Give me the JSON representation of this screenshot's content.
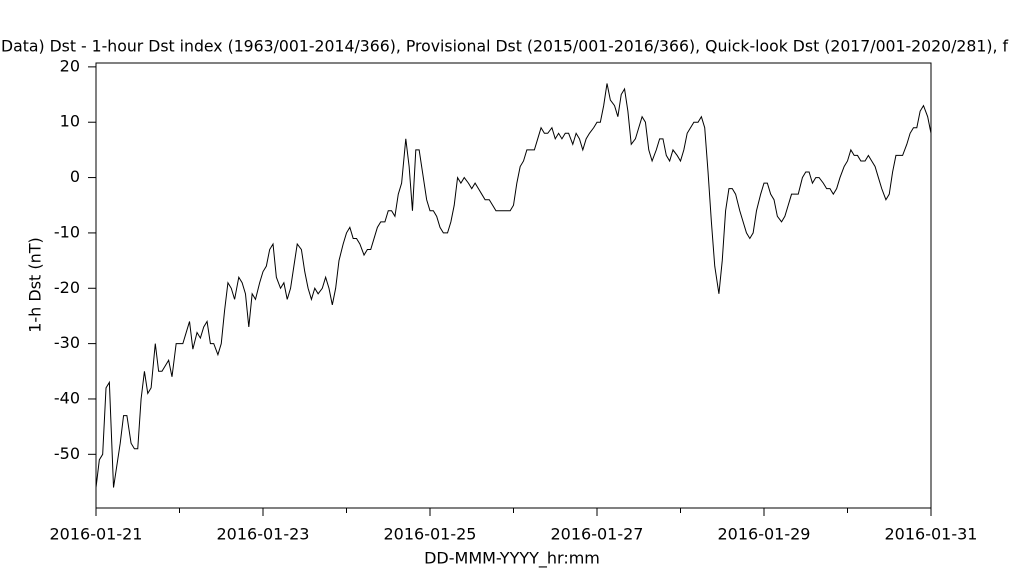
{
  "chart_data": {
    "type": "line",
    "title": "Data)  Dst - 1-hour Dst index (1963/001-2014/366), Provisional Dst (2015/001-2016/366), Quick-look Dst (2017/001-2020/281), f",
    "xlabel": "DD-MMM-YYYY_hr:mm",
    "ylabel": "1-h Dst (nT)",
    "xlim": [
      0,
      10
    ],
    "ylim": [
      -59.7,
      20.7
    ],
    "xticks": [
      {
        "value": 0,
        "label": "2016-01-21"
      },
      {
        "value": 2,
        "label": "2016-01-23"
      },
      {
        "value": 4,
        "label": "2016-01-25"
      },
      {
        "value": 6,
        "label": "2016-01-27"
      },
      {
        "value": 8,
        "label": "2016-01-29"
      },
      {
        "value": 10,
        "label": "2016-01-31"
      }
    ],
    "xminor_ticks": [
      1,
      3,
      5,
      7,
      9
    ],
    "yticks": [
      -50,
      -40,
      -30,
      -20,
      -10,
      0,
      10,
      20
    ],
    "series": [
      {
        "color": "#000000",
        "x": [
          0,
          0.04,
          0.08,
          0.12,
          0.16,
          0.21,
          0.29,
          0.33,
          0.37,
          0.42,
          0.46,
          0.5,
          0.54,
          0.58,
          0.62,
          0.66,
          0.71,
          0.75,
          0.79,
          0.83,
          0.87,
          0.91,
          0.96,
          1,
          1.04,
          1.08,
          1.12,
          1.16,
          1.21,
          1.25,
          1.29,
          1.33,
          1.37,
          1.41,
          1.46,
          1.5,
          1.54,
          1.58,
          1.62,
          1.66,
          1.71,
          1.75,
          1.79,
          1.83,
          1.87,
          1.91,
          1.96,
          2,
          2.04,
          2.08,
          2.12,
          2.16,
          2.21,
          2.25,
          2.29,
          2.33,
          2.37,
          2.41,
          2.46,
          2.5,
          2.54,
          2.58,
          2.62,
          2.66,
          2.71,
          2.75,
          2.79,
          2.83,
          2.87,
          2.91,
          2.96,
          3,
          3.04,
          3.08,
          3.12,
          3.16,
          3.21,
          3.25,
          3.29,
          3.33,
          3.37,
          3.41,
          3.46,
          3.5,
          3.54,
          3.58,
          3.62,
          3.66,
          3.71,
          3.75,
          3.79,
          3.83,
          3.87,
          3.91,
          3.96,
          4,
          4.04,
          4.08,
          4.12,
          4.16,
          4.21,
          4.25,
          4.29,
          4.33,
          4.37,
          4.41,
          4.46,
          4.5,
          4.54,
          4.58,
          4.62,
          4.66,
          4.71,
          4.75,
          4.79,
          4.83,
          4.87,
          4.91,
          4.96,
          5,
          5.04,
          5.08,
          5.12,
          5.16,
          5.21,
          5.25,
          5.29,
          5.33,
          5.37,
          5.41,
          5.46,
          5.5,
          5.54,
          5.58,
          5.62,
          5.66,
          5.71,
          5.75,
          5.79,
          5.83,
          5.87,
          5.91,
          5.96,
          6,
          6.04,
          6.08,
          6.12,
          6.16,
          6.21,
          6.25,
          6.29,
          6.33,
          6.37,
          6.41,
          6.46,
          6.5,
          6.54,
          6.58,
          6.62,
          6.66,
          6.71,
          6.75,
          6.79,
          6.83,
          6.87,
          6.91,
          6.96,
          7,
          7.04,
          7.08,
          7.12,
          7.16,
          7.21,
          7.25,
          7.29,
          7.33,
          7.37,
          7.41,
          7.46,
          7.5,
          7.54,
          7.58,
          7.62,
          7.66,
          7.71,
          7.75,
          7.79,
          7.83,
          7.87,
          7.91,
          7.96,
          8,
          8.04,
          8.08,
          8.12,
          8.16,
          8.21,
          8.25,
          8.29,
          8.33,
          8.37,
          8.41,
          8.46,
          8.5,
          8.54,
          8.58,
          8.62,
          8.66,
          8.71,
          8.75,
          8.79,
          8.83,
          8.87,
          8.91,
          8.96,
          9,
          9.04,
          9.08,
          9.12,
          9.16,
          9.21,
          9.25,
          9.29,
          9.33,
          9.37,
          9.41,
          9.46,
          9.5,
          9.54,
          9.58,
          9.62,
          9.66,
          9.71,
          9.75,
          9.79,
          9.83,
          9.87,
          9.91,
          9.96,
          10
        ],
        "values": [
          -56,
          -51,
          -50,
          -38,
          -37,
          -56,
          -48,
          -43,
          -43,
          -48,
          -49,
          -49,
          -40,
          -35,
          -39,
          -38,
          -30,
          -35,
          -35,
          -34,
          -33,
          -36,
          -30,
          -30,
          -30,
          -28,
          -26,
          -31,
          -28,
          -29,
          -27,
          -26,
          -30,
          -30,
          -32,
          -30,
          -24,
          -19,
          -20,
          -22,
          -18,
          -19,
          -21,
          -27,
          -21,
          -22,
          -19,
          -17,
          -16,
          -13,
          -12,
          -18,
          -20,
          -19,
          -22,
          -20,
          -16,
          -12,
          -13,
          -17,
          -20,
          -22,
          -20,
          -21,
          -20,
          -18,
          -20,
          -23,
          -20,
          -15,
          -12,
          -10,
          -9,
          -11,
          -11,
          -12,
          -14,
          -13,
          -13,
          -11,
          -9,
          -8,
          -8,
          -6,
          -6,
          -7,
          -3,
          -1,
          7,
          2,
          -6,
          5,
          5,
          1,
          -4,
          -6,
          -6,
          -7,
          -9,
          -10,
          -10,
          -8,
          -5,
          0,
          -1,
          0,
          -1,
          -2,
          -1,
          -2,
          -3,
          -4,
          -4,
          -5,
          -6,
          -6,
          -6,
          -6,
          -6,
          -5,
          -1,
          2,
          3,
          5,
          5,
          5,
          7,
          9,
          8,
          8,
          9,
          7,
          8,
          7,
          8,
          8,
          6,
          8,
          7,
          5,
          7,
          8,
          9,
          10,
          10,
          13,
          17,
          14,
          13,
          11,
          15,
          16,
          12,
          6,
          7,
          9,
          11,
          10,
          5,
          3,
          5,
          7,
          7,
          4,
          3,
          5,
          4,
          3,
          5,
          8,
          9,
          10,
          10,
          11,
          9,
          1,
          -8,
          -16,
          -21,
          -15,
          -6,
          -2,
          -2,
          -3,
          -6,
          -8,
          -10,
          -11,
          -10,
          -6,
          -3,
          -1,
          -1,
          -3,
          -4,
          -7,
          -8,
          -7,
          -5,
          -3,
          -3,
          -3,
          0,
          1,
          1,
          -1,
          0,
          0,
          -1,
          -2,
          -2,
          -3,
          -2,
          0,
          2,
          3,
          5,
          4,
          4,
          3,
          3,
          4,
          3,
          2,
          0,
          -2,
          -4,
          -3,
          1,
          4,
          4,
          4,
          6,
          8,
          9,
          9,
          12,
          13,
          11,
          8
        ]
      }
    ]
  }
}
